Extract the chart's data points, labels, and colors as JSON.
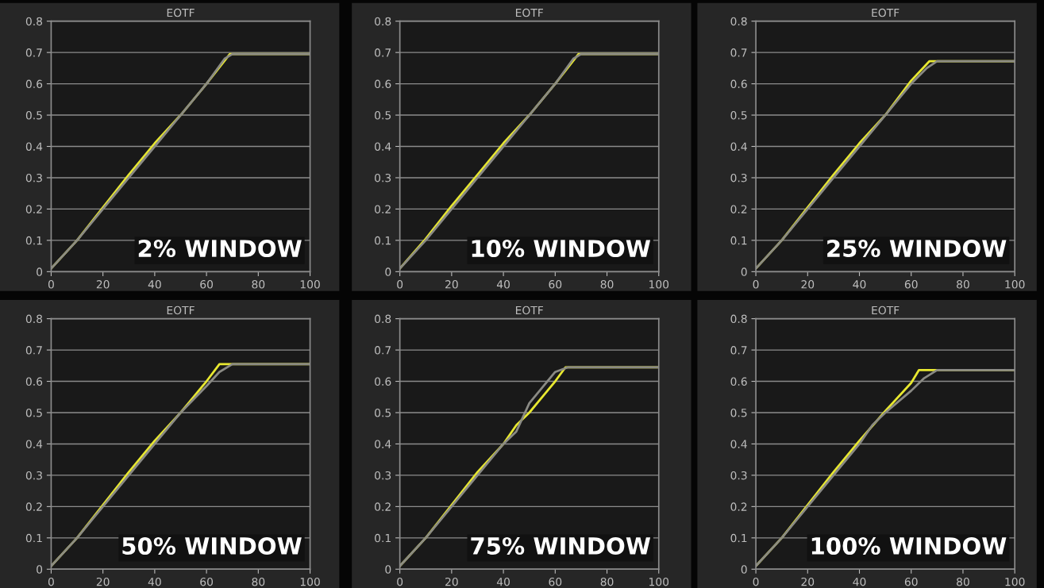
{
  "chart_data": [
    {
      "type": "line",
      "title": "EOTF",
      "xlim": [
        0,
        100
      ],
      "ylim": [
        0,
        0.8
      ],
      "xticks": [
        0,
        20,
        40,
        60,
        80,
        100
      ],
      "yticks": [
        0,
        0.1,
        0.2,
        0.3,
        0.4,
        0.5,
        0.6,
        0.7,
        0.8
      ],
      "grid": "y",
      "annotations": [
        "2% WINDOW"
      ],
      "series": [
        {
          "color": "#e8e830",
          "x": [
            0,
            10,
            20,
            30,
            40,
            50,
            60,
            69,
            100
          ],
          "values": [
            0.01,
            0.1,
            0.205,
            0.31,
            0.41,
            0.5,
            0.6,
            0.695,
            0.695
          ]
        },
        {
          "color": "#8a8a84",
          "x": [
            0,
            10,
            20,
            30,
            40,
            50,
            60,
            67,
            70,
            100
          ],
          "values": [
            0.01,
            0.1,
            0.2,
            0.3,
            0.4,
            0.5,
            0.6,
            0.68,
            0.695,
            0.695
          ]
        }
      ]
    },
    {
      "type": "line",
      "title": "EOTF",
      "xlim": [
        0,
        100
      ],
      "ylim": [
        0,
        0.8
      ],
      "xticks": [
        0,
        20,
        40,
        60,
        80,
        100
      ],
      "yticks": [
        0,
        0.1,
        0.2,
        0.3,
        0.4,
        0.5,
        0.6,
        0.7,
        0.8
      ],
      "grid": "y",
      "annotations": [
        "10% WINDOW"
      ],
      "series": [
        {
          "color": "#e8e830",
          "x": [
            0,
            10,
            20,
            30,
            40,
            50,
            60,
            69,
            100
          ],
          "values": [
            0.01,
            0.105,
            0.21,
            0.31,
            0.41,
            0.5,
            0.6,
            0.695,
            0.695
          ]
        },
        {
          "color": "#8a8a84",
          "x": [
            0,
            10,
            20,
            30,
            40,
            50,
            60,
            67,
            70,
            100
          ],
          "values": [
            0.01,
            0.1,
            0.2,
            0.3,
            0.4,
            0.5,
            0.6,
            0.68,
            0.695,
            0.695
          ]
        }
      ]
    },
    {
      "type": "line",
      "title": "EOTF",
      "xlim": [
        0,
        100
      ],
      "ylim": [
        0,
        0.8
      ],
      "xticks": [
        0,
        20,
        40,
        60,
        80,
        100
      ],
      "yticks": [
        0,
        0.1,
        0.2,
        0.3,
        0.4,
        0.5,
        0.6,
        0.7,
        0.8
      ],
      "grid": "y",
      "annotations": [
        "25% WINDOW"
      ],
      "series": [
        {
          "color": "#e8e830",
          "x": [
            0,
            10,
            20,
            30,
            40,
            50,
            60,
            67,
            70,
            100
          ],
          "values": [
            0.01,
            0.1,
            0.205,
            0.31,
            0.41,
            0.5,
            0.61,
            0.672,
            0.672,
            0.672
          ]
        },
        {
          "color": "#8a8a84",
          "x": [
            0,
            10,
            20,
            30,
            40,
            50,
            60,
            66,
            70,
            100
          ],
          "values": [
            0.01,
            0.1,
            0.2,
            0.3,
            0.4,
            0.5,
            0.6,
            0.65,
            0.672,
            0.672
          ]
        }
      ]
    },
    {
      "type": "line",
      "title": "EOTF",
      "xlim": [
        0,
        100
      ],
      "ylim": [
        0,
        0.8
      ],
      "xticks": [
        0,
        20,
        40,
        60,
        80,
        100
      ],
      "yticks": [
        0,
        0.1,
        0.2,
        0.3,
        0.4,
        0.5,
        0.6,
        0.7,
        0.8
      ],
      "grid": "y",
      "annotations": [
        "50% WINDOW"
      ],
      "series": [
        {
          "color": "#e8e830",
          "x": [
            0,
            10,
            20,
            30,
            40,
            50,
            60,
            65,
            70,
            100
          ],
          "values": [
            0.01,
            0.1,
            0.205,
            0.31,
            0.41,
            0.5,
            0.6,
            0.655,
            0.655,
            0.655
          ]
        },
        {
          "color": "#8a8a84",
          "x": [
            0,
            10,
            20,
            30,
            40,
            50,
            60,
            65,
            70,
            100
          ],
          "values": [
            0.01,
            0.1,
            0.2,
            0.3,
            0.4,
            0.5,
            0.585,
            0.63,
            0.655,
            0.655
          ]
        }
      ]
    },
    {
      "type": "line",
      "title": "EOTF",
      "xlim": [
        0,
        100
      ],
      "ylim": [
        0,
        0.8
      ],
      "xticks": [
        0,
        20,
        40,
        60,
        80,
        100
      ],
      "yticks": [
        0,
        0.1,
        0.2,
        0.3,
        0.4,
        0.5,
        0.6,
        0.7,
        0.8
      ],
      "grid": "y",
      "annotations": [
        "75% WINDOW"
      ],
      "series": [
        {
          "color": "#e8e830",
          "x": [
            0,
            10,
            20,
            30,
            40,
            45,
            50,
            60,
            64,
            100
          ],
          "values": [
            0.01,
            0.1,
            0.205,
            0.31,
            0.4,
            0.46,
            0.5,
            0.6,
            0.645,
            0.645
          ]
        },
        {
          "color": "#8a8a84",
          "x": [
            0,
            10,
            20,
            30,
            40,
            45,
            50,
            55,
            60,
            65,
            100
          ],
          "values": [
            0.01,
            0.1,
            0.2,
            0.3,
            0.4,
            0.44,
            0.53,
            0.58,
            0.63,
            0.645,
            0.645
          ]
        }
      ]
    },
    {
      "type": "line",
      "title": "EOTF",
      "xlim": [
        0,
        100
      ],
      "ylim": [
        0,
        0.8
      ],
      "xticks": [
        0,
        20,
        40,
        60,
        80,
        100
      ],
      "yticks": [
        0,
        0.1,
        0.2,
        0.3,
        0.4,
        0.5,
        0.6,
        0.7,
        0.8
      ],
      "grid": "y",
      "annotations": [
        "100% WINDOW"
      ],
      "series": [
        {
          "color": "#e8e830",
          "x": [
            0,
            10,
            20,
            30,
            40,
            50,
            60,
            63,
            68,
            100
          ],
          "values": [
            0.01,
            0.1,
            0.205,
            0.31,
            0.41,
            0.505,
            0.595,
            0.636,
            0.636,
            0.636
          ]
        },
        {
          "color": "#8a8a84",
          "x": [
            0,
            10,
            20,
            30,
            40,
            45,
            50,
            60,
            65,
            70,
            100
          ],
          "values": [
            0.01,
            0.1,
            0.2,
            0.3,
            0.4,
            0.46,
            0.5,
            0.57,
            0.61,
            0.636,
            0.636
          ]
        }
      ]
    }
  ]
}
